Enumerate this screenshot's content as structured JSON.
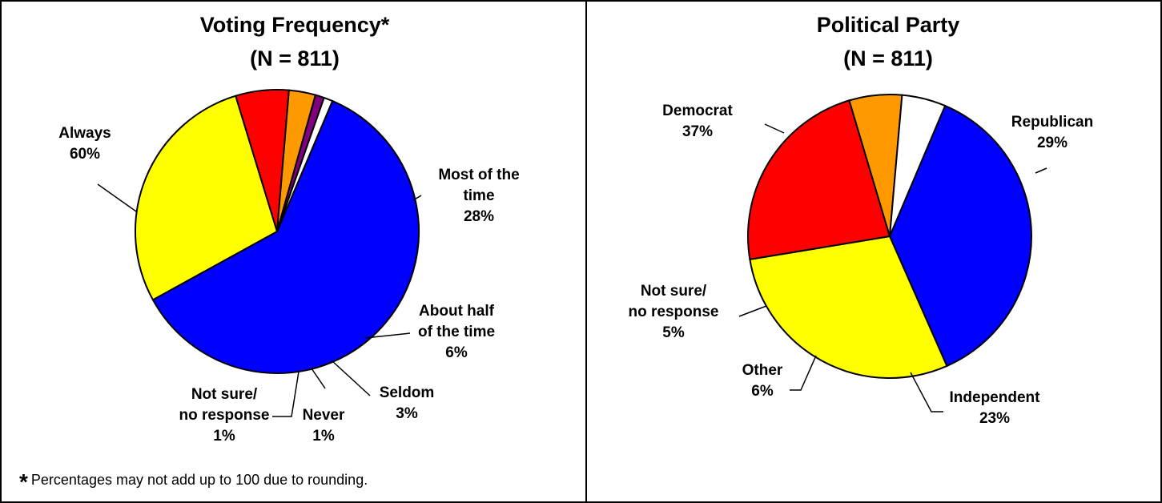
{
  "chart_data": [
    {
      "type": "pie",
      "title": "Voting Frequency*",
      "subtitle": "(N = 811)",
      "categories": [
        "Always",
        "Most of the time",
        "About half of the time",
        "Seldom",
        "Never",
        "Not sure/ no response"
      ],
      "values": [
        60,
        28,
        6,
        3,
        1,
        1
      ],
      "value_labels": [
        "60%",
        "28%",
        "6%",
        "3%",
        "1%",
        "1%"
      ],
      "colors": [
        "#0000FF",
        "#FFFF00",
        "#FF0000",
        "#FF9900",
        "#800080",
        "#FFFFFF"
      ],
      "label_lines": [
        [
          "Always",
          "60%"
        ],
        [
          "Most of the",
          "time",
          "28%"
        ],
        [
          "About half",
          "of the time",
          "6%"
        ],
        [
          "Seldom",
          "3%"
        ],
        [
          "Never",
          "1%"
        ],
        [
          "Not sure/",
          "no response",
          "1%"
        ]
      ],
      "footnote": {
        "marker": "*",
        "text": "Percentages may not add up to 100 due to rounding."
      }
    },
    {
      "type": "pie",
      "title": "Political Party",
      "subtitle": "(N = 811)",
      "categories": [
        "Democrat",
        "Republican",
        "Independent",
        "Other",
        "Not sure/ no response"
      ],
      "values": [
        37,
        29,
        23,
        6,
        5
      ],
      "value_labels": [
        "37%",
        "29%",
        "23%",
        "6%",
        "5%"
      ],
      "colors": [
        "#0000FF",
        "#FFFF00",
        "#FF0000",
        "#FF9900",
        "#FFFFFF"
      ],
      "label_lines": [
        [
          "Democrat",
          "37%"
        ],
        [
          "Republican",
          "29%"
        ],
        [
          "Independent",
          "23%"
        ],
        [
          "Other",
          "6%"
        ],
        [
          "Not sure/",
          "no response",
          "5%"
        ]
      ]
    }
  ]
}
